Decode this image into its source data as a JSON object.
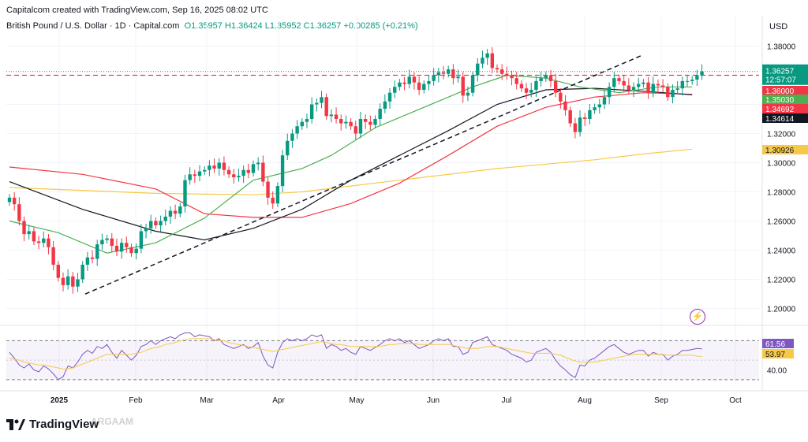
{
  "header": {
    "created_by": "Capitalcom created with TradingView.com, Sep 16, 2025 08:02 UTC",
    "symbol": "British Pound / U.S. Dollar · 1D · Capital.com",
    "ohlc": "O1.35957 H1.36424 L1.35952 C1.36257 +0.00285 (+0.21%)",
    "currency": "USD"
  },
  "branding": {
    "logo_text": "TradingView",
    "watermark": "ARGAAM"
  },
  "colors": {
    "up": "#089981",
    "down": "#f23645",
    "ma_green": "#4caf50",
    "ma_black": "#131722",
    "ma_red": "#f23645",
    "ma_yellow": "#f7c948",
    "rsi": "#7e57c2",
    "rsi_ma": "#f7c948"
  },
  "chart_data": [
    {
      "type": "candlestick",
      "title": "British Pound / U.S. Dollar",
      "ylim": [
        1.19,
        1.39
      ],
      "y_ticks": [
        "1.38000",
        "1.36000",
        "1.34000",
        "1.32000",
        "1.30000",
        "1.28000",
        "1.26000",
        "1.24000",
        "1.22000",
        "1.20000"
      ],
      "x_ticks": [
        "2025",
        "Feb",
        "Mar",
        "Apr",
        "May",
        "Jun",
        "Jul",
        "Aug",
        "Sep",
        "Oct"
      ],
      "grid": true,
      "last_price": "1.36257",
      "countdown": "12:57:07",
      "price_labels": [
        {
          "value": "1.36000",
          "color": "#f23645",
          "level": 1.36
        },
        {
          "value": "1.35030",
          "color": "#4caf50",
          "level": 1.3503
        },
        {
          "value": "1.34692",
          "color": "#f23645",
          "level": 1.34692
        },
        {
          "value": "1.34614",
          "color": "#131722",
          "level": 1.34614
        },
        {
          "value": "1.30926",
          "color": "#f7c948",
          "level": 1.30926
        }
      ],
      "horizontal_line": {
        "level": 1.36,
        "style": "dashed",
        "color": "#f23645"
      },
      "trendline": {
        "from": [
          "2025-01-13",
          1.2099
        ],
        "to": [
          "2025-08-22",
          1.374
        ],
        "style": "dashed"
      },
      "closes": [
        1.276,
        1.2715,
        1.26,
        1.251,
        1.253,
        1.246,
        1.245,
        1.248,
        1.242,
        1.23,
        1.221,
        1.216,
        1.222,
        1.215,
        1.22,
        1.23,
        1.235,
        1.234,
        1.244,
        1.247,
        1.248,
        1.243,
        1.239,
        1.245,
        1.242,
        1.238,
        1.241,
        1.253,
        1.255,
        1.26,
        1.257,
        1.26,
        1.263,
        1.267,
        1.265,
        1.27,
        1.288,
        1.292,
        1.291,
        1.294,
        1.295,
        1.298,
        1.296,
        1.3,
        1.295,
        1.292,
        1.29,
        1.291,
        1.295,
        1.293,
        1.299,
        1.3,
        1.287,
        1.276,
        1.272,
        1.284,
        1.305,
        1.315,
        1.32,
        1.325,
        1.328,
        1.33,
        1.34,
        1.341,
        1.345,
        1.332,
        1.333,
        1.33,
        1.327,
        1.328,
        1.325,
        1.32,
        1.33,
        1.328,
        1.326,
        1.33,
        1.337,
        1.342,
        1.348,
        1.352,
        1.355,
        1.354,
        1.359,
        1.355,
        1.35,
        1.354,
        1.356,
        1.36,
        1.362,
        1.361,
        1.364,
        1.358,
        1.359,
        1.346,
        1.348,
        1.36,
        1.368,
        1.372,
        1.375,
        1.365,
        1.364,
        1.361,
        1.36,
        1.358,
        1.354,
        1.351,
        1.348,
        1.35,
        1.356,
        1.358,
        1.36,
        1.356,
        1.348,
        1.342,
        1.336,
        1.327,
        1.321,
        1.331,
        1.33,
        1.336,
        1.338,
        1.34,
        1.345,
        1.352,
        1.358,
        1.356,
        1.353,
        1.35,
        1.352,
        1.354,
        1.355,
        1.348,
        1.354,
        1.353,
        1.352,
        1.345,
        1.35,
        1.351,
        1.356,
        1.356,
        1.357,
        1.36,
        1.3626
      ],
      "ma_green": [
        [
          0,
          1.26
        ],
        [
          10,
          1.252
        ],
        [
          20,
          1.238
        ],
        [
          30,
          1.245
        ],
        [
          40,
          1.262
        ],
        [
          50,
          1.288
        ],
        [
          60,
          1.296
        ],
        [
          66,
          1.305
        ],
        [
          75,
          1.324
        ],
        [
          85,
          1.338
        ],
        [
          95,
          1.352
        ],
        [
          102,
          1.36
        ],
        [
          110,
          1.358
        ],
        [
          117,
          1.352
        ],
        [
          125,
          1.348
        ],
        [
          133,
          1.352
        ],
        [
          140,
          1.352
        ]
      ],
      "ma_black": [
        [
          0,
          1.287
        ],
        [
          15,
          1.268
        ],
        [
          30,
          1.253
        ],
        [
          40,
          1.247
        ],
        [
          50,
          1.255
        ],
        [
          60,
          1.268
        ],
        [
          70,
          1.288
        ],
        [
          80,
          1.305
        ],
        [
          90,
          1.322
        ],
        [
          100,
          1.34
        ],
        [
          110,
          1.35
        ],
        [
          120,
          1.351
        ],
        [
          130,
          1.349
        ],
        [
          140,
          1.3466
        ]
      ],
      "ma_red": [
        [
          0,
          1.297
        ],
        [
          15,
          1.292
        ],
        [
          30,
          1.282
        ],
        [
          40,
          1.265
        ],
        [
          50,
          1.2625
        ],
        [
          60,
          1.2625
        ],
        [
          70,
          1.272
        ],
        [
          80,
          1.286
        ],
        [
          90,
          1.305
        ],
        [
          100,
          1.325
        ],
        [
          110,
          1.338
        ],
        [
          120,
          1.345
        ],
        [
          130,
          1.348
        ],
        [
          140,
          1.3469
        ]
      ],
      "ma_yellow": [
        [
          0,
          1.283
        ],
        [
          30,
          1.279
        ],
        [
          50,
          1.278
        ],
        [
          60,
          1.28
        ],
        [
          80,
          1.288
        ],
        [
          100,
          1.296
        ],
        [
          120,
          1.302
        ],
        [
          130,
          1.306
        ],
        [
          140,
          1.3093
        ]
      ]
    },
    {
      "type": "line",
      "title": "RSI",
      "ylim": [
        25,
        80
      ],
      "y_ticks": [
        "40.00"
      ],
      "bands": [
        70,
        30
      ],
      "series": [
        {
          "label": "61.56",
          "color": "#7e57c2",
          "last": 61.56,
          "values": [
            58,
            52,
            45,
            42,
            46,
            40,
            38,
            44,
            41,
            36,
            30,
            33,
            44,
            42,
            48,
            56,
            60,
            57,
            64,
            62,
            66,
            58,
            52,
            60,
            55,
            50,
            55,
            64,
            66,
            70,
            66,
            70,
            72,
            74,
            72,
            76,
            78,
            78,
            74,
            76,
            75,
            74,
            70,
            72,
            66,
            64,
            62,
            64,
            66,
            62,
            64,
            68,
            54,
            45,
            42,
            58,
            68,
            72,
            70,
            72,
            70,
            72,
            76,
            74,
            76,
            62,
            66,
            64,
            60,
            62,
            58,
            56,
            64,
            62,
            60,
            63,
            66,
            70,
            72,
            70,
            72,
            68,
            70,
            66,
            62,
            64,
            66,
            70,
            72,
            70,
            72,
            64,
            64,
            56,
            58,
            68,
            70,
            72,
            74,
            66,
            64,
            62,
            60,
            56,
            54,
            52,
            48,
            50,
            58,
            60,
            62,
            58,
            50,
            44,
            40,
            35,
            32,
            45,
            44,
            50,
            52,
            56,
            60,
            64,
            66,
            62,
            58,
            56,
            58,
            60,
            60,
            54,
            58,
            56,
            56,
            50,
            54,
            56,
            60,
            60,
            61,
            62,
            61.56
          ]
        },
        {
          "label": "53.97",
          "color": "#f7c948",
          "last": 53.97,
          "values": [
            52,
            51,
            50,
            48,
            47,
            46,
            45,
            45,
            44,
            43,
            42,
            41,
            41,
            42,
            44,
            46,
            48,
            50,
            52,
            54,
            56,
            56,
            56,
            56,
            56,
            56,
            57,
            58,
            60,
            62,
            63,
            64,
            66,
            67,
            68,
            70,
            71,
            72,
            72,
            72,
            72,
            72,
            71,
            70,
            70,
            68,
            67,
            66,
            65,
            64,
            63,
            62,
            61,
            60,
            59,
            60,
            61,
            62,
            63,
            64,
            65,
            66,
            67,
            68,
            69,
            68,
            67,
            66,
            66,
            65,
            64,
            64,
            64,
            64,
            64,
            64,
            64,
            65,
            66,
            66,
            67,
            67,
            67,
            67,
            66,
            66,
            66,
            66,
            66,
            66,
            66,
            65,
            64,
            63,
            62,
            62,
            62,
            63,
            64,
            64,
            64,
            63,
            62,
            61,
            60,
            59,
            58,
            57,
            57,
            57,
            57,
            57,
            56,
            55,
            53,
            51,
            49,
            48,
            48,
            48,
            48,
            49,
            50,
            51,
            52,
            53,
            54,
            55,
            56,
            56,
            56,
            56,
            56,
            56,
            56,
            55,
            55,
            55,
            55,
            55,
            55,
            54,
            53.97
          ]
        }
      ]
    }
  ]
}
